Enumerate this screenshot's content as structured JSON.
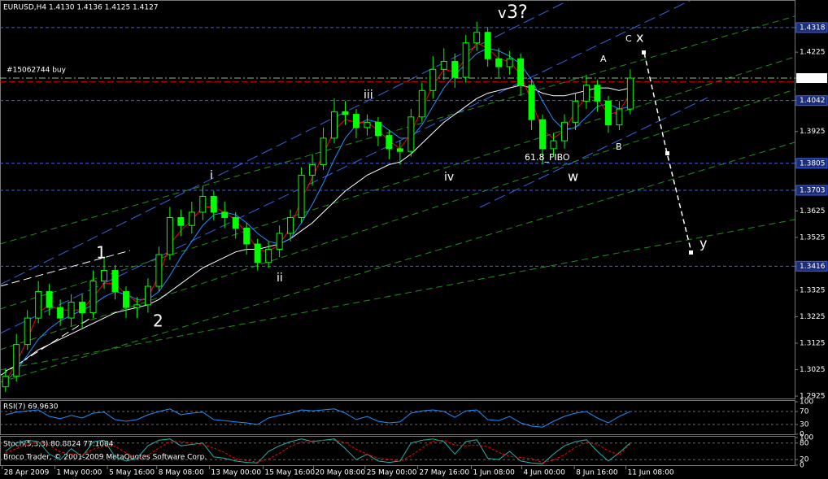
{
  "chart_data": [
    {
      "type": "candlestick",
      "title": "EURUSD,H4  1.4130 1.4136 1.4125 1.4127",
      "open": [
        1.296,
        1.3,
        1.312,
        1.322,
        1.332,
        1.326,
        1.322,
        1.328,
        1.324,
        1.336,
        1.34,
        1.332,
        1.326,
        1.327,
        1.334,
        1.346,
        1.36,
        1.357,
        1.362,
        1.368,
        1.362,
        1.36,
        1.356,
        1.35,
        1.343,
        1.348,
        1.354,
        1.36,
        1.376,
        1.38,
        1.39,
        1.4,
        1.399,
        1.394,
        1.396,
        1.391,
        1.386,
        1.385,
        1.398,
        1.408,
        1.416,
        1.419,
        1.413,
        1.426,
        1.43,
        1.42,
        1.417,
        1.42,
        1.41,
        1.397,
        1.386,
        1.389,
        1.396,
        1.404,
        1.41,
        1.404,
        1.395,
        1.401
      ],
      "high": [
        1.303,
        1.316,
        1.325,
        1.336,
        1.335,
        1.329,
        1.331,
        1.331,
        1.34,
        1.345,
        1.342,
        1.334,
        1.33,
        1.337,
        1.349,
        1.364,
        1.363,
        1.366,
        1.372,
        1.37,
        1.366,
        1.362,
        1.358,
        1.352,
        1.351,
        1.357,
        1.363,
        1.379,
        1.384,
        1.394,
        1.405,
        1.404,
        1.401,
        1.399,
        1.398,
        1.393,
        1.389,
        1.401,
        1.411,
        1.421,
        1.424,
        1.422,
        1.429,
        1.434,
        1.432,
        1.424,
        1.423,
        1.422,
        1.412,
        1.399,
        1.392,
        1.399,
        1.407,
        1.414,
        1.412,
        1.406,
        1.404,
        1.416
      ],
      "low": [
        1.294,
        1.298,
        1.31,
        1.32,
        1.323,
        1.319,
        1.319,
        1.318,
        1.322,
        1.333,
        1.329,
        1.322,
        1.322,
        1.324,
        1.332,
        1.344,
        1.353,
        1.354,
        1.359,
        1.359,
        1.356,
        1.352,
        1.346,
        1.34,
        1.341,
        1.345,
        1.351,
        1.358,
        1.372,
        1.378,
        1.388,
        1.395,
        1.39,
        1.391,
        1.387,
        1.382,
        1.38,
        1.383,
        1.396,
        1.405,
        1.412,
        1.409,
        1.411,
        1.423,
        1.417,
        1.413,
        1.414,
        1.406,
        1.393,
        1.38,
        1.383,
        1.386,
        1.393,
        1.401,
        1.4,
        1.392,
        1.393,
        1.399
      ],
      "close": [
        1.3,
        1.312,
        1.322,
        1.332,
        1.326,
        1.322,
        1.328,
        1.324,
        1.336,
        1.34,
        1.332,
        1.326,
        1.327,
        1.334,
        1.346,
        1.36,
        1.357,
        1.362,
        1.368,
        1.362,
        1.36,
        1.356,
        1.35,
        1.343,
        1.348,
        1.354,
        1.36,
        1.376,
        1.38,
        1.39,
        1.4,
        1.399,
        1.394,
        1.396,
        1.391,
        1.386,
        1.385,
        1.398,
        1.408,
        1.416,
        1.419,
        1.413,
        1.426,
        1.43,
        1.42,
        1.417,
        1.42,
        1.41,
        1.397,
        1.386,
        1.389,
        1.396,
        1.404,
        1.41,
        1.404,
        1.395,
        1.401,
        1.4127
      ],
      "color": "#00ff00",
      "lines": [
        {
          "color": "#ffffff",
          "values": [
            1.302,
            1.304,
            1.307,
            1.31,
            1.312,
            1.314,
            1.316,
            1.318,
            1.32,
            1.322,
            1.324,
            1.325,
            1.326,
            1.327,
            1.329,
            1.332,
            1.335,
            1.338,
            1.341,
            1.343,
            1.345,
            1.347,
            1.348,
            1.348,
            1.349,
            1.35,
            1.352,
            1.355,
            1.358,
            1.362,
            1.366,
            1.37,
            1.373,
            1.376,
            1.378,
            1.38,
            1.381,
            1.384,
            1.388,
            1.392,
            1.396,
            1.399,
            1.402,
            1.405,
            1.407,
            1.408,
            1.409,
            1.41,
            1.409,
            1.407,
            1.406,
            1.406,
            1.407,
            1.408,
            1.409,
            1.409,
            1.408,
            1.409
          ]
        },
        {
          "color": "#1e90ff",
          "values": [
            1.298,
            1.302,
            1.308,
            1.314,
            1.318,
            1.321,
            1.323,
            1.325,
            1.327,
            1.33,
            1.332,
            1.331,
            1.329,
            1.329,
            1.332,
            1.338,
            1.345,
            1.351,
            1.357,
            1.361,
            1.362,
            1.361,
            1.358,
            1.354,
            1.351,
            1.35,
            1.352,
            1.358,
            1.365,
            1.373,
            1.382,
            1.39,
            1.395,
            1.397,
            1.396,
            1.393,
            1.39,
            1.39,
            1.395,
            1.402,
            1.409,
            1.414,
            1.418,
            1.422,
            1.424,
            1.423,
            1.421,
            1.418,
            1.412,
            1.404,
            1.397,
            1.393,
            1.394,
            1.398,
            1.402,
            1.403,
            1.401,
            1.402
          ]
        },
        {
          "color": "#ff0000",
          "values": [
            1.298,
            1.305,
            1.314,
            1.324,
            1.327,
            1.325,
            1.325,
            1.325,
            1.33,
            1.335,
            1.335,
            1.331,
            1.328,
            1.33,
            1.338,
            1.35,
            1.355,
            1.359,
            1.364,
            1.364,
            1.362,
            1.359,
            1.354,
            1.348,
            1.347,
            1.35,
            1.356,
            1.367,
            1.375,
            1.384,
            1.393,
            1.397,
            1.396,
            1.396,
            1.393,
            1.389,
            1.386,
            1.392,
            1.401,
            1.41,
            1.416,
            1.415,
            1.42,
            1.426,
            1.424,
            1.42,
            1.419,
            1.414,
            1.404,
            1.393,
            1.39,
            1.393,
            1.4,
            1.406,
            1.405,
            1.399,
            1.4,
            1.407
          ]
        }
      ],
      "ylim": [
        1.2916,
        1.4416
      ],
      "yticks": [
        1.2925,
        1.3025,
        1.3125,
        1.3225,
        1.3325,
        1.3416,
        1.3525,
        1.3625,
        1.3703,
        1.3805,
        1.3925,
        1.4042,
        1.4127,
        1.4225,
        1.4318
      ],
      "xlim": [
        -0.5,
        72
      ],
      "xticks": [
        {
          "value": -0.3,
          "label": "28 Apr 2009"
        },
        {
          "value": 4.5,
          "label": "1 May 00:00"
        },
        {
          "value": 9.3,
          "label": "5 May 16:00"
        },
        {
          "value": 13.8,
          "label": "8 May 08:00"
        },
        {
          "value": 18.6,
          "label": "13 May 00:00"
        },
        {
          "value": 23.5,
          "label": "15 May 16:00"
        },
        {
          "value": 28.1,
          "label": "20 May 08:00"
        },
        {
          "value": 32.8,
          "label": "25 May 00:00"
        },
        {
          "value": 37.6,
          "label": "27 May 16:00"
        },
        {
          "value": 42.5,
          "label": "1 Jun 08:00"
        },
        {
          "value": 47.1,
          "label": "4 Jun 00:00"
        },
        {
          "value": 51.9,
          "label": "8 Jun 16:00"
        },
        {
          "value": 56.6,
          "label": "11 Jun 08:00"
        }
      ],
      "levels": [
        1.3416,
        1.3703,
        1.3805,
        1.4042,
        1.4318
      ],
      "level_color": "#3a62e0",
      "bid": 1.4127,
      "order": {
        "label": "#15062744 buy",
        "value": 1.4113,
        "color": "#d00000"
      },
      "annotations": [
        {
          "text": "v",
          "color": "#9acd32"
        },
        {
          "text": "3?",
          "color": "#1e90ff"
        },
        {
          "text": "i",
          "color": "#9acd32"
        },
        {
          "text": "ii",
          "color": "#9acd32"
        },
        {
          "text": "iii",
          "color": "#9acd32"
        },
        {
          "text": "iv",
          "color": "#9acd32"
        },
        {
          "text": "1",
          "color": "#1e90ff"
        },
        {
          "text": "2",
          "color": "#1e90ff"
        },
        {
          "text": "w",
          "color": "#ffd700"
        },
        {
          "text": "x",
          "color": "#ffd700"
        },
        {
          "text": "y",
          "color": "#ffd700"
        },
        {
          "text": "A",
          "color": "#aaaaaa"
        },
        {
          "text": "B",
          "color": "#aaaaaa"
        },
        {
          "text": "C",
          "color": "#aaaaaa"
        },
        {
          "text": "61.8_FIBO",
          "color": "#1e90ff"
        }
      ]
    },
    {
      "type": "line",
      "title": "RSI(7) 69.9630",
      "series": [
        {
          "color": "#1e90ff",
          "values": [
            60,
            68,
            72,
            75,
            55,
            48,
            58,
            50,
            65,
            68,
            45,
            40,
            45,
            60,
            70,
            78,
            60,
            65,
            68,
            45,
            42,
            38,
            35,
            30,
            50,
            58,
            65,
            75,
            72,
            75,
            78,
            65,
            45,
            55,
            40,
            35,
            38,
            65,
            72,
            75,
            70,
            52,
            72,
            75,
            45,
            42,
            55,
            35,
            25,
            22,
            40,
            55,
            65,
            70,
            50,
            35,
            55,
            69.963
          ]
        }
      ],
      "ylim": [
        0,
        100
      ],
      "yticks": [
        0,
        30,
        70,
        100
      ],
      "levels": [
        30,
        70
      ]
    },
    {
      "type": "line",
      "title": "Stoch(5,3,3) 80.8824 77.1084",
      "copyright": "Broco Trader, © 2001-2009 MetaQuotes Software Corp.",
      "series": [
        {
          "color": "#20b2aa",
          "values": [
            50,
            80,
            90,
            85,
            40,
            20,
            60,
            30,
            85,
            90,
            30,
            15,
            25,
            70,
            90,
            95,
            70,
            75,
            80,
            30,
            25,
            15,
            10,
            8,
            50,
            70,
            85,
            95,
            85,
            90,
            95,
            60,
            20,
            40,
            15,
            10,
            15,
            80,
            90,
            95,
            85,
            40,
            85,
            92,
            25,
            20,
            50,
            15,
            8,
            5,
            40,
            70,
            85,
            92,
            50,
            15,
            45,
            80.8824
          ]
        },
        {
          "color": "#ff0000",
          "values": [
            45,
            60,
            75,
            85,
            72,
            48,
            40,
            37,
            58,
            68,
            68,
            45,
            23,
            37,
            62,
            85,
            85,
            80,
            75,
            62,
            45,
            23,
            17,
            11,
            23,
            43,
            68,
            83,
            88,
            90,
            90,
            82,
            58,
            40,
            25,
            22,
            13,
            35,
            62,
            88,
            90,
            73,
            70,
            72,
            67,
            46,
            32,
            28,
            24,
            9,
            18,
            38,
            65,
            82,
            76,
            52,
            37,
            77.1084
          ]
        }
      ],
      "ylim": [
        0,
        100
      ],
      "yticks": [
        0,
        20,
        80,
        100
      ],
      "levels": [
        20,
        80
      ]
    }
  ]
}
